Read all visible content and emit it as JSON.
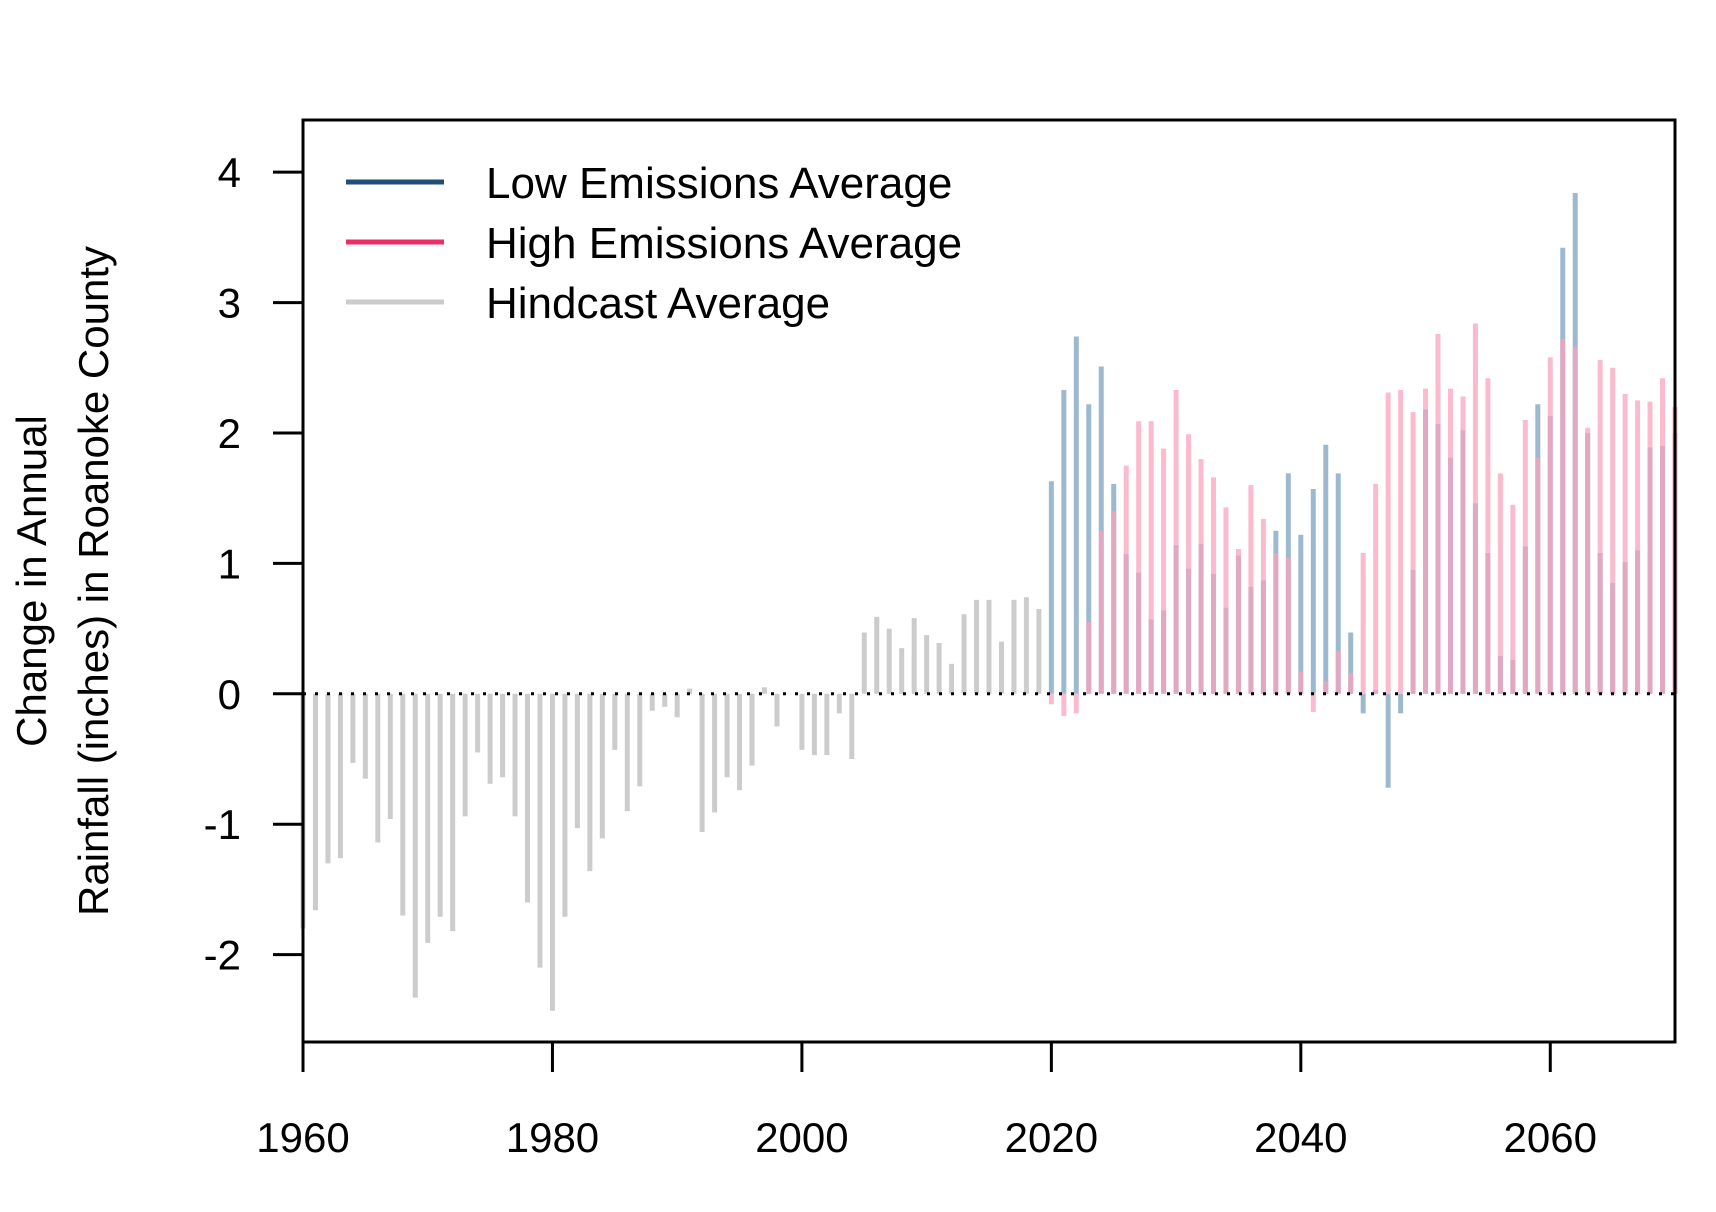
{
  "chart_data": {
    "type": "bar",
    "title": "",
    "xlabel": "",
    "ylabel": [
      "Change in Annual",
      "Rainfall (inches) in Roanoke County"
    ],
    "xlim": [
      1960,
      2070
    ],
    "ylim": [
      -2.67,
      4.4
    ],
    "x_ticks": [
      1960,
      1980,
      2000,
      2020,
      2040,
      2060
    ],
    "y_ticks": [
      -2,
      -1,
      0,
      1,
      2,
      3,
      4
    ],
    "grid": false,
    "legend_position": "top-left",
    "baseline": 0,
    "series": [
      {
        "name": "Low Emissions Average",
        "color": "#1f4e79",
        "bar_color": "#9db9cf",
        "x": [
          2020,
          2021,
          2022,
          2023,
          2024,
          2025,
          2026,
          2027,
          2028,
          2029,
          2030,
          2031,
          2032,
          2033,
          2034,
          2035,
          2036,
          2037,
          2038,
          2039,
          2040,
          2041,
          2042,
          2043,
          2044,
          2045,
          2046,
          2047,
          2048,
          2049,
          2050,
          2051,
          2052,
          2053,
          2054,
          2055,
          2056,
          2057,
          2058,
          2059,
          2060,
          2061,
          2062,
          2063,
          2064,
          2065,
          2066,
          2067,
          2068,
          2069,
          2070
        ],
        "values": [
          1.63,
          2.33,
          2.74,
          2.22,
          2.51,
          1.61,
          1.07,
          0.93,
          0.57,
          0.64,
          1.14,
          0.96,
          1.15,
          0.92,
          0.66,
          1.06,
          0.82,
          0.87,
          1.25,
          1.69,
          1.22,
          1.57,
          1.91,
          1.69,
          0.47,
          -0.15,
          0.03,
          -0.72,
          -0.15,
          0.95,
          2.18,
          2.07,
          1.81,
          2.02,
          1.46,
          1.08,
          0.29,
          0.26,
          1.13,
          2.22,
          2.13,
          3.42,
          3.84,
          2.0,
          1.08,
          0.85,
          1.01,
          1.1,
          1.89,
          1.9,
          2.0
        ]
      },
      {
        "name": "High Emissions Average",
        "color": "#ee2c67",
        "bar_color": "#f9a3bd",
        "x": [
          2020,
          2021,
          2022,
          2023,
          2024,
          2025,
          2026,
          2027,
          2028,
          2029,
          2030,
          2031,
          2032,
          2033,
          2034,
          2035,
          2036,
          2037,
          2038,
          2039,
          2040,
          2041,
          2042,
          2043,
          2044,
          2045,
          2046,
          2047,
          2048,
          2049,
          2050,
          2051,
          2052,
          2053,
          2054,
          2055,
          2056,
          2057,
          2058,
          2059,
          2060,
          2061,
          2062,
          2063,
          2064,
          2065,
          2066,
          2067,
          2068,
          2069,
          2070
        ],
        "values": [
          -0.08,
          -0.17,
          -0.15,
          0.55,
          1.25,
          1.4,
          1.75,
          2.09,
          2.09,
          1.88,
          2.33,
          1.99,
          1.8,
          1.66,
          1.43,
          1.11,
          1.6,
          1.34,
          1.08,
          1.04,
          0.17,
          -0.14,
          0.1,
          0.33,
          0.16,
          1.08,
          1.61,
          2.31,
          2.33,
          2.16,
          2.34,
          2.76,
          2.34,
          2.28,
          2.84,
          2.42,
          1.69,
          1.45,
          2.1,
          1.81,
          2.58,
          2.72,
          2.66,
          2.04,
          2.56,
          2.5,
          2.3,
          2.25,
          2.24,
          2.42,
          2.2
        ]
      },
      {
        "name": "Hindcast Average",
        "color": "#cccccc",
        "bar_color": "#cccccc",
        "x": [
          1960,
          1961,
          1962,
          1963,
          1964,
          1965,
          1966,
          1967,
          1968,
          1969,
          1970,
          1971,
          1972,
          1973,
          1974,
          1975,
          1976,
          1977,
          1978,
          1979,
          1980,
          1981,
          1982,
          1983,
          1984,
          1985,
          1986,
          1987,
          1988,
          1989,
          1990,
          1991,
          1992,
          1993,
          1994,
          1995,
          1996,
          1997,
          1998,
          1999,
          2000,
          2001,
          2002,
          2003,
          2004,
          2005,
          2006,
          2007,
          2008,
          2009,
          2010,
          2011,
          2012,
          2013,
          2014,
          2015,
          2016,
          2017,
          2018,
          2019
        ],
        "values": [
          -1.8,
          -1.66,
          -1.3,
          -1.26,
          -0.53,
          -0.65,
          -1.14,
          -0.96,
          -1.7,
          -2.33,
          -1.91,
          -1.71,
          -1.82,
          -0.94,
          -0.45,
          -0.69,
          -0.64,
          -0.94,
          -1.6,
          -2.1,
          -2.43,
          -1.71,
          -1.03,
          -1.36,
          -1.11,
          -0.43,
          -0.9,
          -0.71,
          -0.13,
          -0.1,
          -0.18,
          0.04,
          -1.06,
          -0.91,
          -0.64,
          -0.74,
          -0.55,
          0.05,
          -0.25,
          0.0,
          -0.43,
          -0.47,
          -0.47,
          -0.15,
          -0.5,
          0.47,
          0.59,
          0.5,
          0.35,
          0.58,
          0.45,
          0.39,
          0.23,
          0.61,
          0.72,
          0.72,
          0.4,
          0.72,
          0.74,
          0.65
        ]
      }
    ]
  }
}
